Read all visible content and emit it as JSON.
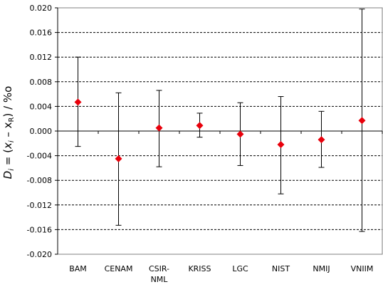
{
  "chart_data": {
    "type": "scatter",
    "ylabel": "Dᵢ = (xᵢ – xᴿ) / %₀",
    "ylabel_parts": {
      "d": "D",
      "sub_i": "i",
      "mid": " = (",
      "x": "x",
      "sub_i2": "i",
      "minus": " – x",
      "sub_r": "R",
      "end": ") / %o"
    },
    "ylim": [
      -0.02,
      0.02
    ],
    "yticks": [
      0.02,
      0.016,
      0.012,
      0.008,
      0.004,
      0.0,
      -0.004,
      -0.008,
      -0.012,
      -0.016,
      -0.02
    ],
    "ytick_labels": [
      "0.020",
      "0.016",
      "0.012",
      "0.008",
      "0.004",
      "0.000",
      "-0.004",
      "-0.008",
      "-0.012",
      "-0.016",
      "-0.020"
    ],
    "grid": "horizontal-dashed",
    "marker_color": "#e8000b",
    "categories": [
      "BAM",
      "CENAM",
      "CSIR-NML",
      "KRISS",
      "LGC",
      "NIST",
      "NMIJ",
      "VNIIM"
    ],
    "category_lines": [
      [
        "BAM"
      ],
      [
        "CENAM"
      ],
      [
        "CSIR-",
        "NML"
      ],
      [
        "KRISS"
      ],
      [
        "LGC"
      ],
      [
        "NIST"
      ],
      [
        "NMIJ"
      ],
      [
        "VNIIM"
      ]
    ],
    "values": [
      0.0047,
      -0.0045,
      0.0005,
      0.0009,
      -0.0005,
      -0.0022,
      -0.0014,
      0.0017
    ],
    "err_upper": [
      0.012,
      0.0062,
      0.0066,
      0.0029,
      0.0046,
      0.0056,
      0.0032,
      0.0198
    ],
    "err_lower": [
      -0.0025,
      -0.0153,
      -0.0058,
      -0.001,
      -0.0056,
      -0.0102,
      -0.0059,
      -0.0163
    ]
  }
}
